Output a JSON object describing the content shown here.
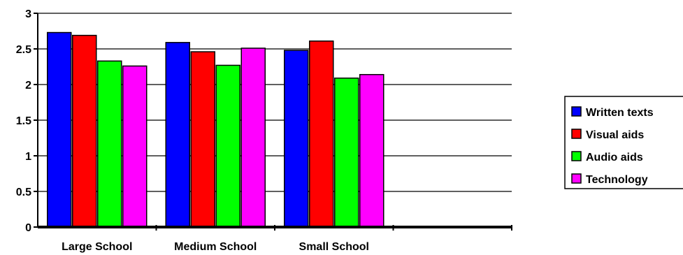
{
  "chart_data": {
    "type": "bar",
    "title": "",
    "xlabel": "",
    "ylabel": "",
    "categories": [
      "Large School",
      "Medium School",
      "Small School",
      ""
    ],
    "series": [
      {
        "name": "Written texts",
        "color": "#0000ff",
        "values": [
          2.73,
          2.59,
          2.48,
          null
        ]
      },
      {
        "name": "Visual aids",
        "color": "#ff0000",
        "values": [
          2.69,
          2.46,
          2.61,
          null
        ]
      },
      {
        "name": "Audio aids",
        "color": "#00ff00",
        "values": [
          2.33,
          2.27,
          2.09,
          null
        ]
      },
      {
        "name": "Technology",
        "color": "#ff00ff",
        "values": [
          2.26,
          2.51,
          2.14,
          null
        ]
      }
    ],
    "ylim": [
      0,
      3
    ],
    "yticks": [
      "0",
      "0.5",
      "1",
      "1.5",
      "2",
      "2.5",
      "3"
    ],
    "grid": true,
    "legend": "right"
  }
}
